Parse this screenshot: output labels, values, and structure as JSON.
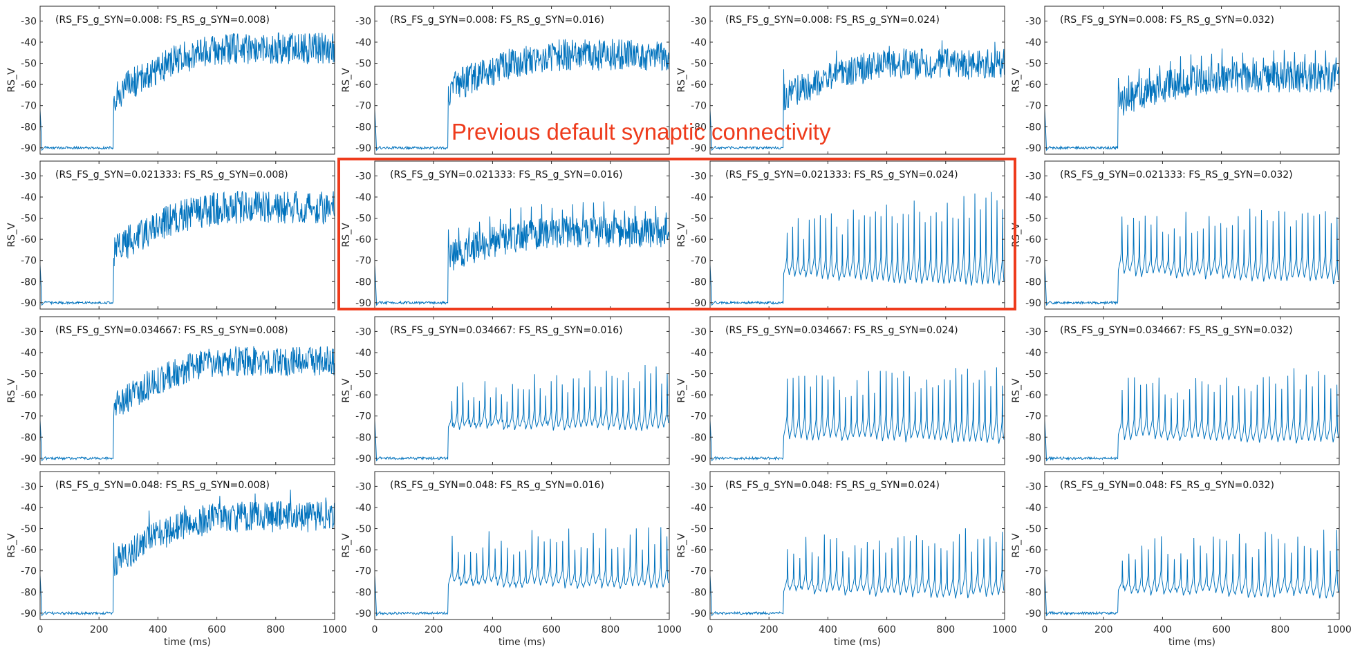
{
  "chart_data": {
    "type": "line",
    "rows": 4,
    "cols": 4,
    "xlabel": "time (ms)",
    "ylabel": "RS_V",
    "xlim": [
      0,
      1000
    ],
    "ylim": [
      -93,
      -23
    ],
    "xticks": [
      0,
      200,
      400,
      600,
      800,
      1000
    ],
    "yticks": [
      -90,
      -80,
      -70,
      -60,
      -50,
      -40,
      -30
    ],
    "line_color": "#0072bd",
    "rs_fs_values": [
      "0.008",
      "0.021333",
      "0.034667",
      "0.048"
    ],
    "fs_rs_values": [
      "0.008",
      "0.016",
      "0.024",
      "0.032"
    ],
    "onset_ms": 250,
    "baseline_mV": -90,
    "panels": [
      {
        "title": "(RS_FS_g_SYN=0.008: FS_RS_g_SYN=0.008)",
        "pattern": "noise",
        "center_start": -66,
        "center_end": -43,
        "amplitude": 15,
        "spikes": 0
      },
      {
        "title": "(RS_FS_g_SYN=0.008: FS_RS_g_SYN=0.016)",
        "pattern": "noise",
        "center_start": -63,
        "center_end": -46,
        "amplitude": 15,
        "spikes": 0
      },
      {
        "title": "(RS_FS_g_SYN=0.008: FS_RS_g_SYN=0.024)",
        "pattern": "mixed",
        "center_start": -66,
        "center_end": -50,
        "amplitude": 14,
        "spikes": 8
      },
      {
        "title": "(RS_FS_g_SYN=0.008: FS_RS_g_SYN=0.032)",
        "pattern": "mixed",
        "center_start": -68,
        "center_end": -56,
        "amplitude": 14,
        "spikes": 40
      },
      {
        "title": "(RS_FS_g_SYN=0.021333: FS_RS_g_SYN=0.008)",
        "pattern": "noise",
        "center_start": -66,
        "center_end": -45,
        "amplitude": 16,
        "spikes": 0
      },
      {
        "title": "(RS_FS_g_SYN=0.021333: FS_RS_g_SYN=0.016)",
        "pattern": "mixed",
        "center_start": -68,
        "center_end": -56,
        "amplitude": 14,
        "spikes": 40
      },
      {
        "title": "(RS_FS_g_SYN=0.021333: FS_RS_g_SYN=0.024)",
        "pattern": "spikes",
        "trough_start": -77,
        "trough_end": -82,
        "peak_start": -55,
        "peak_end": -42,
        "spikes": 40
      },
      {
        "title": "(RS_FS_g_SYN=0.021333: FS_RS_g_SYN=0.032)",
        "pattern": "spikes",
        "trough_start": -76,
        "trough_end": -80,
        "peak_start": -55,
        "peak_end": -46,
        "spikes": 38
      },
      {
        "title": "(RS_FS_g_SYN=0.034667: FS_RS_g_SYN=0.008)",
        "pattern": "noise",
        "center_start": -66,
        "center_end": -44,
        "amplitude": 14,
        "spikes": 0
      },
      {
        "title": "(RS_FS_g_SYN=0.034667: FS_RS_g_SYN=0.016)",
        "pattern": "spikes",
        "trough_start": -75,
        "trough_end": -76,
        "peak_start": -60,
        "peak_end": -49,
        "spikes": 40
      },
      {
        "title": "(RS_FS_g_SYN=0.034667: FS_RS_g_SYN=0.024)",
        "pattern": "spikes",
        "trough_start": -80,
        "trough_end": -82,
        "peak_start": -57,
        "peak_end": -50,
        "spikes": 38
      },
      {
        "title": "(RS_FS_g_SYN=0.034667: FS_RS_g_SYN=0.032)",
        "pattern": "spikes",
        "trough_start": -80,
        "trough_end": -82,
        "peak_start": -58,
        "peak_end": -52,
        "spikes": 36
      },
      {
        "title": "(RS_FS_g_SYN=0.048: FS_RS_g_SYN=0.008)",
        "pattern": "mixed",
        "center_start": -66,
        "center_end": -44,
        "amplitude": 14,
        "spikes": 12
      },
      {
        "title": "(RS_FS_g_SYN=0.048: FS_RS_g_SYN=0.016)",
        "pattern": "spikes",
        "trough_start": -76,
        "trough_end": -78,
        "peak_start": -57,
        "peak_end": -55,
        "spikes": 36
      },
      {
        "title": "(RS_FS_g_SYN=0.048: FS_RS_g_SYN=0.024)",
        "pattern": "spikes",
        "trough_start": -80,
        "trough_end": -82,
        "peak_start": -59,
        "peak_end": -55,
        "spikes": 36
      },
      {
        "title": "(RS_FS_g_SYN=0.048: FS_RS_g_SYN=0.032)",
        "pattern": "spikes",
        "trough_start": -80,
        "trough_end": -82,
        "peak_start": -60,
        "peak_end": -56,
        "spikes": 34
      }
    ],
    "highlight": {
      "panels": [
        5,
        6
      ],
      "annotation": "Previous default synaptic connectivity",
      "color": "#ee3b1c"
    }
  }
}
